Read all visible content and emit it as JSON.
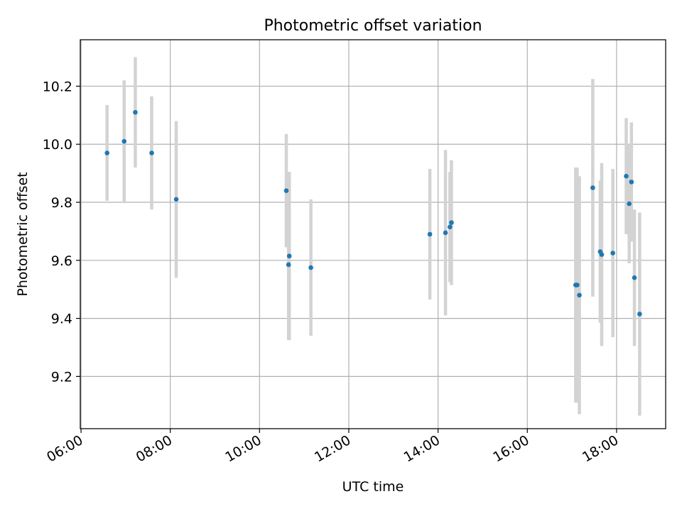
{
  "chart_data": {
    "type": "scatter",
    "title": "Photometric offset variation",
    "xlabel": "UTC time",
    "ylabel": "Photometric offset",
    "x_ticks": [
      "06:00",
      "08:00",
      "10:00",
      "12:00",
      "14:00",
      "16:00",
      "18:00"
    ],
    "y_ticks": [
      "9.2",
      "9.4",
      "9.6",
      "9.8",
      "10.0",
      "10.2"
    ],
    "xlim": [
      "05:59",
      "19:06"
    ],
    "ylim": [
      9.02,
      10.36
    ],
    "grid": true,
    "point_color": "#1f77b4",
    "errorbar_color": "#d3d3d3",
    "points": [
      {
        "x": "06:35",
        "y": 9.97,
        "yerr": 0.165
      },
      {
        "x": "06:58",
        "y": 10.01,
        "yerr": 0.21
      },
      {
        "x": "07:13",
        "y": 10.11,
        "yerr": 0.19
      },
      {
        "x": "07:35",
        "y": 9.97,
        "yerr": 0.195
      },
      {
        "x": "08:08",
        "y": 9.81,
        "yerr": 0.27
      },
      {
        "x": "10:36",
        "y": 9.84,
        "yerr": 0.195
      },
      {
        "x": "10:39",
        "y": 9.585,
        "yerr": 0.26
      },
      {
        "x": "10:40",
        "y": 9.615,
        "yerr": 0.29
      },
      {
        "x": "11:09",
        "y": 9.575,
        "yerr": 0.235
      },
      {
        "x": "13:49",
        "y": 9.69,
        "yerr": 0.225
      },
      {
        "x": "14:10",
        "y": 9.695,
        "yerr": 0.285
      },
      {
        "x": "14:16",
        "y": 9.715,
        "yerr": 0.19
      },
      {
        "x": "14:18",
        "y": 9.73,
        "yerr": 0.215
      },
      {
        "x": "17:05",
        "y": 9.515,
        "yerr": 0.405
      },
      {
        "x": "17:07",
        "y": 9.515,
        "yerr": 0.405
      },
      {
        "x": "17:10",
        "y": 9.48,
        "yerr": 0.41
      },
      {
        "x": "17:28",
        "y": 9.85,
        "yerr": 0.375
      },
      {
        "x": "17:38",
        "y": 9.63,
        "yerr": 0.245
      },
      {
        "x": "17:40",
        "y": 9.62,
        "yerr": 0.315
      },
      {
        "x": "17:55",
        "y": 9.625,
        "yerr": 0.29
      },
      {
        "x": "18:13",
        "y": 9.89,
        "yerr": 0.2
      },
      {
        "x": "18:17",
        "y": 9.795,
        "yerr": 0.205
      },
      {
        "x": "18:20",
        "y": 9.87,
        "yerr": 0.205
      },
      {
        "x": "18:24",
        "y": 9.54,
        "yerr": 0.235
      },
      {
        "x": "18:31",
        "y": 9.415,
        "yerr": 0.35
      }
    ]
  }
}
